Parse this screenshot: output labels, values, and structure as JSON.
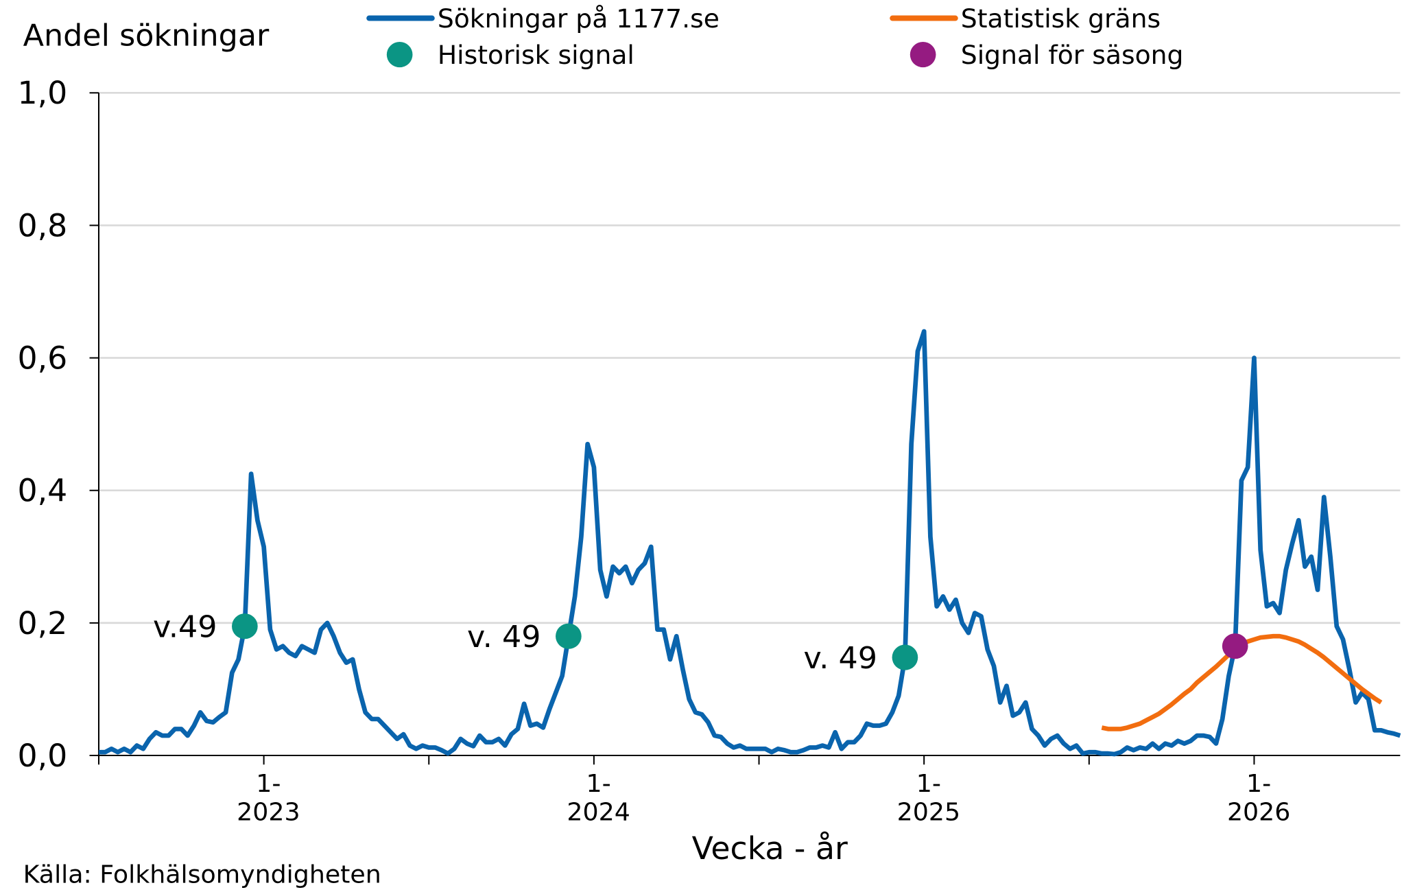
{
  "chart_data": {
    "type": "line",
    "y_label": "Andel sökningar",
    "x_label": "Vecka - år",
    "source": "Källa: Folkhälsomyndigheten",
    "xlim": [
      0,
      205
    ],
    "xticks": [
      {
        "value": 26,
        "label": "1-\n2023"
      },
      {
        "value": 78,
        "label": "1-\n2024"
      },
      {
        "value": 130,
        "label": "1-\n2025"
      },
      {
        "value": 182,
        "label": "1-\n2026"
      }
    ],
    "xminorticks": [
      0,
      52,
      104,
      156
    ],
    "ylim": [
      0,
      1
    ],
    "yticks": [
      {
        "value": 0,
        "label": "0,0"
      },
      {
        "value": 0.2,
        "label": "0,2"
      },
      {
        "value": 0.4,
        "label": "0,4"
      },
      {
        "value": 0.6,
        "label": "0,6"
      },
      {
        "value": 0.8,
        "label": "0,8"
      },
      {
        "value": 1,
        "label": "1,0"
      }
    ],
    "grid": true,
    "series": [
      {
        "name": "Sökningar på 1177.se",
        "color": "#0a64ad",
        "values": [
          0.005,
          0.005,
          0.01,
          0.005,
          0.01,
          0.005,
          0.015,
          0.01,
          0.025,
          0.035,
          0.03,
          0.03,
          0.04,
          0.04,
          0.03,
          0.045,
          0.065,
          0.052,
          0.05,
          0.058,
          0.065,
          0.125,
          0.145,
          0.195,
          0.425,
          0.355,
          0.315,
          0.19,
          0.16,
          0.165,
          0.155,
          0.15,
          0.165,
          0.16,
          0.155,
          0.19,
          0.2,
          0.18,
          0.155,
          0.14,
          0.145,
          0.1,
          0.065,
          0.055,
          0.055,
          0.045,
          0.035,
          0.025,
          0.032,
          0.015,
          0.01,
          0.015,
          0.012,
          0.012,
          0.008,
          0.003,
          0.01,
          0.025,
          0.018,
          0.014,
          0.03,
          0.02,
          0.02,
          0.025,
          0.015,
          0.032,
          0.04,
          0.078,
          0.045,
          0.048,
          0.042,
          0.07,
          0.095,
          0.12,
          0.18,
          0.24,
          0.33,
          0.47,
          0.435,
          0.28,
          0.24,
          0.285,
          0.275,
          0.285,
          0.26,
          0.28,
          0.29,
          0.315,
          0.19,
          0.19,
          0.145,
          0.18,
          0.13,
          0.085,
          0.065,
          0.062,
          0.05,
          0.03,
          0.028,
          0.018,
          0.012,
          0.015,
          0.01,
          0.01,
          0.01,
          0.01,
          0.005,
          0.01,
          0.008,
          0.005,
          0.005,
          0.008,
          0.012,
          0.012,
          0.015,
          0.012,
          0.035,
          0.01,
          0.02,
          0.02,
          0.03,
          0.048,
          0.045,
          0.045,
          0.048,
          0.065,
          0.09,
          0.148,
          0.47,
          0.61,
          0.64,
          0.33,
          0.225,
          0.24,
          0.22,
          0.235,
          0.2,
          0.185,
          0.215,
          0.21,
          0.16,
          0.135,
          0.08,
          0.105,
          0.06,
          0.065,
          0.08,
          0.04,
          0.03,
          0.015,
          0.025,
          0.03,
          0.018,
          0.01,
          0.015,
          0.003,
          0.005,
          0.005,
          0.003,
          0.003,
          0.002,
          0.005,
          0.012,
          0.008,
          0.012,
          0.01,
          0.018,
          0.01,
          0.018,
          0.015,
          0.022,
          0.018,
          0.022,
          0.03,
          0.03,
          0.028,
          0.018,
          0.055,
          0.12,
          0.165,
          0.415,
          0.435,
          0.6,
          0.31,
          0.225,
          0.23,
          0.215,
          0.28,
          0.32,
          0.355,
          0.285,
          0.3,
          0.25,
          0.39,
          0.3,
          0.195,
          0.175,
          0.13,
          0.08,
          0.095,
          0.085,
          0.038,
          0.038,
          0.035,
          0.033,
          0.03
        ]
      },
      {
        "name": "Statistisk gräns",
        "color": "#f26d0f",
        "values": [
          null,
          null,
          null,
          null,
          null,
          null,
          null,
          null,
          null,
          null,
          null,
          null,
          null,
          null,
          null,
          null,
          null,
          null,
          null,
          null,
          null,
          null,
          null,
          null,
          null,
          null,
          null,
          null,
          null,
          null,
          null,
          null,
          null,
          null,
          null,
          null,
          null,
          null,
          null,
          null,
          null,
          null,
          null,
          null,
          null,
          null,
          null,
          null,
          null,
          null,
          null,
          null,
          null,
          null,
          null,
          null,
          null,
          null,
          null,
          null,
          null,
          null,
          null,
          null,
          null,
          null,
          null,
          null,
          null,
          null,
          null,
          null,
          null,
          null,
          null,
          null,
          null,
          null,
          null,
          null,
          null,
          null,
          null,
          null,
          null,
          null,
          null,
          null,
          null,
          null,
          null,
          null,
          null,
          null,
          null,
          null,
          null,
          null,
          null,
          null,
          null,
          null,
          null,
          null,
          null,
          null,
          null,
          null,
          null,
          null,
          null,
          null,
          null,
          null,
          null,
          null,
          null,
          null,
          null,
          null,
          null,
          null,
          null,
          null,
          null,
          null,
          null,
          null,
          null,
          null,
          null,
          null,
          null,
          null,
          null,
          null,
          null,
          null,
          null,
          null,
          null,
          null,
          null,
          null,
          null,
          null,
          null,
          null,
          null,
          null,
          null,
          null,
          null,
          null,
          null,
          null,
          null,
          null,
          0.042,
          0.04,
          0.04,
          0.04,
          0.042,
          0.045,
          0.048,
          0.053,
          0.058,
          0.063,
          0.07,
          0.077,
          0.085,
          0.093,
          0.1,
          0.11,
          0.118,
          0.126,
          0.134,
          0.143,
          0.152,
          0.16,
          0.167,
          0.172,
          0.175,
          0.178,
          0.179,
          0.18,
          0.18,
          0.178,
          0.175,
          0.172,
          0.167,
          0.161,
          0.155,
          0.148,
          0.14,
          0.132,
          0.124,
          0.116,
          0.108,
          0.1,
          0.093,
          0.086,
          0.08,
          null,
          null,
          null
        ]
      }
    ],
    "points": [
      {
        "name": "Historisk signal",
        "color": "#0b9584",
        "x": [
          23,
          74,
          127
        ],
        "values": [
          0.195,
          0.18,
          0.148
        ],
        "labels": [
          "v.49",
          "v. 49",
          "v. 49"
        ]
      },
      {
        "name": "Signal för säsong",
        "color": "#951b81",
        "x": [
          179
        ],
        "values": [
          0.165
        ]
      }
    ]
  }
}
